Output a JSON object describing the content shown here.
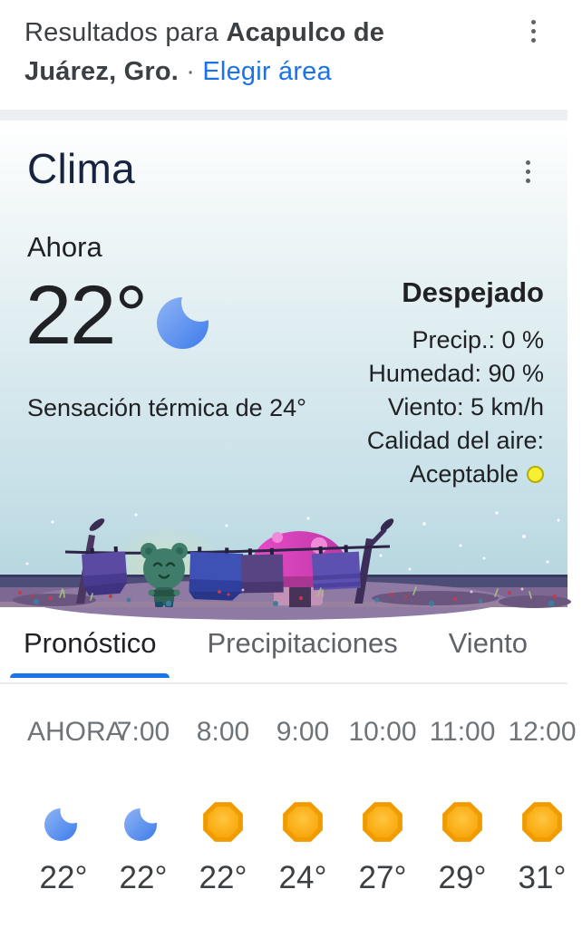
{
  "header": {
    "prefix": "Resultados para ",
    "location": "Acapulco de Juárez, Gro.",
    "dot": " · ",
    "choose_area_link": "Elegir área"
  },
  "weather_card": {
    "title": "Clima",
    "now_label": "Ahora",
    "temperature": "22°",
    "temperature_icon": "moon",
    "feels_like": "Sensación térmica de 24°",
    "condition": "Despejado",
    "detail_lines": [
      "Precip.: 0 %",
      "Humedad: 90 %",
      "Viento: 5 km/h",
      "Calidad del aire:"
    ],
    "air_quality": {
      "value": "Aceptable",
      "indicator_color": "#f7ef32"
    }
  },
  "tabs": [
    {
      "label": "Pronóstico",
      "active": true
    },
    {
      "label": "Precipitaciones",
      "active": false
    },
    {
      "label": "Viento",
      "active": false
    }
  ],
  "hourly_forecast": [
    {
      "time": "AHORA",
      "icon": "moon",
      "temp": "22°"
    },
    {
      "time": "7:00",
      "icon": "moon",
      "temp": "22°"
    },
    {
      "time": "8:00",
      "icon": "sun",
      "temp": "22°"
    },
    {
      "time": "9:00",
      "icon": "sun",
      "temp": "24°"
    },
    {
      "time": "10:00",
      "icon": "sun",
      "temp": "27°"
    },
    {
      "time": "11:00",
      "icon": "sun",
      "temp": "29°"
    },
    {
      "time": "12:00",
      "icon": "sun",
      "temp": "31°"
    }
  ],
  "colors": {
    "accent_blue": "#1a73e8",
    "title_navy": "#17233f",
    "air_quality_yellow": "#f7ef32",
    "moon_blue": "#4285f4",
    "sun_orange": "#f9ab00"
  },
  "illustration_alt": "Night scene: frog hanging towels on a clothesline beside a mushroom house"
}
